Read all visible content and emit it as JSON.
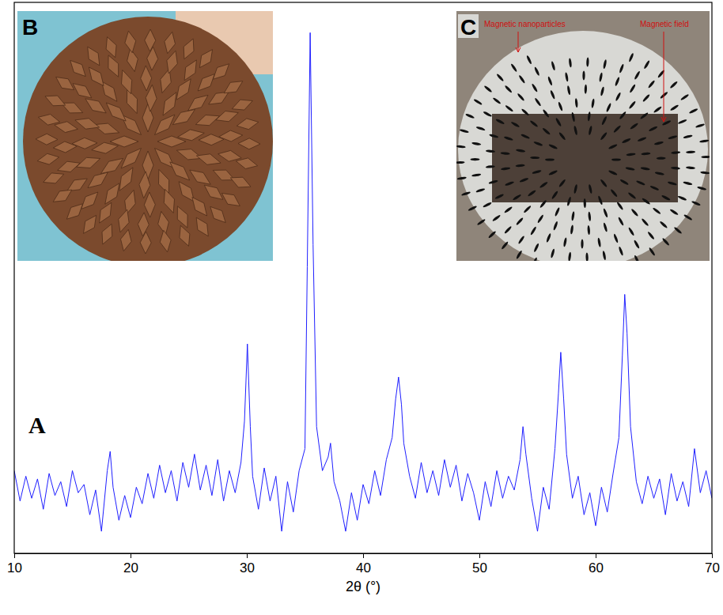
{
  "chart_data": {
    "type": "line",
    "x_label": "2θ (°)",
    "panel_label": "A",
    "x": [
      10,
      10.5,
      11,
      11.5,
      12,
      12.5,
      13,
      13.5,
      14,
      14.5,
      15,
      15.5,
      16,
      16.5,
      17,
      17.5,
      18,
      18.25,
      18.5,
      19,
      19.5,
      20,
      20.5,
      21,
      21.5,
      22,
      22.5,
      23,
      23.5,
      24,
      24.5,
      25,
      25.5,
      26,
      26.5,
      27,
      27.5,
      28,
      28.5,
      29,
      29.5,
      29.8,
      30.05,
      30.3,
      30.5,
      31,
      31.5,
      32,
      32.5,
      33,
      33.5,
      34,
      34.5,
      35,
      35.2,
      35.45,
      35.7,
      36,
      36.5,
      37,
      37.2,
      37.5,
      38,
      38.5,
      39,
      39.5,
      40,
      40.5,
      41,
      41.5,
      42,
      42.5,
      42.8,
      43.05,
      43.3,
      43.5,
      44,
      44.5,
      45,
      45.5,
      46,
      46.5,
      47,
      47.5,
      48,
      48.5,
      49,
      49.5,
      50,
      50.5,
      51,
      51.5,
      52,
      52.5,
      53,
      53.5,
      53.75,
      54,
      54.5,
      55,
      55.5,
      56,
      56.5,
      56.8,
      57,
      57.25,
      57.5,
      58,
      58.5,
      59,
      59.5,
      60,
      60.5,
      61,
      61.5,
      62,
      62.3,
      62.5,
      62.7,
      63,
      63.5,
      64,
      64.5,
      65,
      65.5,
      66,
      66.5,
      67,
      67.5,
      68,
      68.5,
      69,
      69.5,
      70
    ],
    "values": [
      150,
      95,
      140,
      100,
      135,
      80,
      145,
      105,
      130,
      85,
      150,
      110,
      125,
      70,
      115,
      40,
      150,
      185,
      120,
      60,
      105,
      65,
      120,
      90,
      145,
      100,
      160,
      110,
      150,
      95,
      165,
      120,
      180,
      115,
      160,
      105,
      170,
      95,
      150,
      110,
      165,
      240,
      380,
      230,
      140,
      80,
      155,
      95,
      140,
      40,
      130,
      75,
      150,
      190,
      520,
      945,
      560,
      230,
      150,
      175,
      200,
      130,
      95,
      40,
      110,
      60,
      125,
      90,
      150,
      105,
      170,
      210,
      280,
      320,
      270,
      200,
      140,
      100,
      165,
      110,
      150,
      105,
      170,
      120,
      160,
      95,
      145,
      110,
      60,
      130,
      85,
      150,
      100,
      140,
      115,
      170,
      230,
      180,
      100,
      40,
      120,
      80,
      190,
      290,
      365,
      280,
      180,
      100,
      140,
      70,
      110,
      50,
      120,
      75,
      145,
      210,
      360,
      470,
      400,
      230,
      130,
      90,
      140,
      100,
      135,
      70,
      145,
      95,
      130,
      85,
      190,
      110,
      150,
      100
    ],
    "color": "#1f1fff",
    "xlim": [
      10,
      70
    ],
    "xticks": [
      10,
      20,
      30,
      40,
      50,
      60,
      70
    ],
    "ylim": [
      0,
      1000
    ],
    "tick_labels": "x",
    "grid": false
  },
  "insets": [
    {
      "label": "B"
    },
    {
      "label": "C",
      "annotations": [
        "Magnetic nanoparticles",
        "Magnetic field"
      ]
    }
  ]
}
